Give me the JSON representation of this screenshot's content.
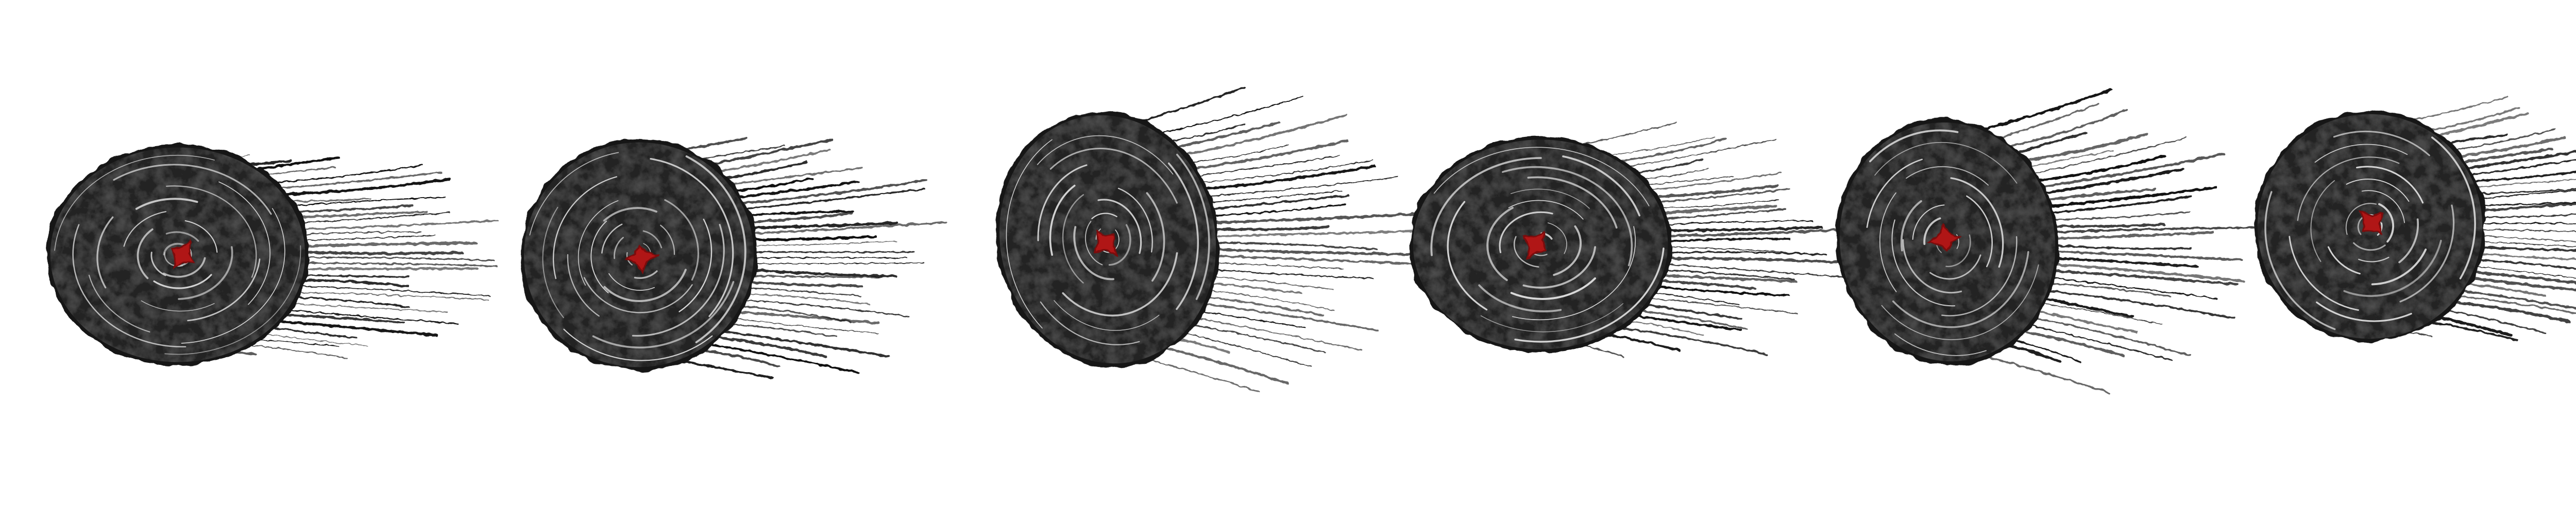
{
  "sprite_sheet": {
    "description_type": "animation-strip",
    "frame_count": 6,
    "background": "#ffffff",
    "colors": {
      "ink": "#151515",
      "ink_mid": "#2e2e2e",
      "swirl": "#d8d8d8",
      "core": "#b01212",
      "core_dark": "#7a0a0a",
      "streak": "#111111"
    },
    "frames": [
      {
        "name": "frame-1",
        "core_angle_deg": 20,
        "trail_spread": 0.35,
        "tilt_deg": 0
      },
      {
        "name": "frame-2",
        "core_angle_deg": 80,
        "trail_spread": 0.55,
        "tilt_deg": -8
      },
      {
        "name": "frame-3",
        "core_angle_deg": 140,
        "trail_spread": 0.85,
        "tilt_deg": -12
      },
      {
        "name": "frame-4",
        "core_angle_deg": 200,
        "trail_spread": 0.6,
        "tilt_deg": 0
      },
      {
        "name": "frame-5",
        "core_angle_deg": 260,
        "trail_spread": 0.9,
        "tilt_deg": -10
      },
      {
        "name": "frame-6",
        "core_angle_deg": 320,
        "trail_spread": 0.7,
        "tilt_deg": -15
      }
    ]
  }
}
